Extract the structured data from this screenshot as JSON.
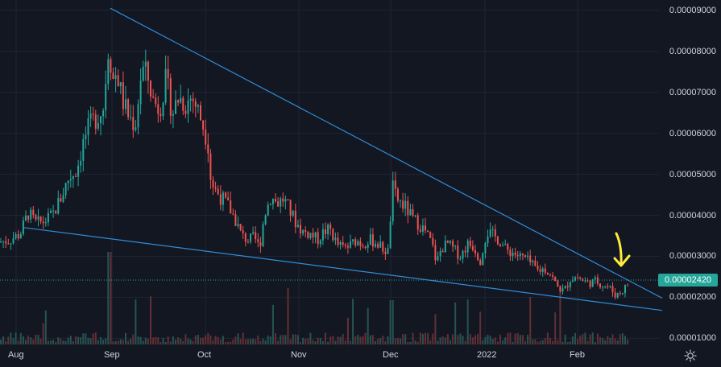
{
  "chart_data": {
    "type": "candlestick",
    "price_axis": {
      "ticks": [
        "0.00009000",
        "0.00008000",
        "0.00007000",
        "0.00006000",
        "0.00005000",
        "0.00004000",
        "0.00003000",
        "0.00002000",
        "0.00001000"
      ],
      "ylim": [
        8.5e-06,
        9.25e-05
      ],
      "grid": true
    },
    "time_axis": {
      "ticks": [
        "Aug",
        "Sep",
        "Oct",
        "Nov",
        "Dec",
        "2022",
        "Feb"
      ],
      "grid": true
    },
    "last_price": "0.00002420",
    "colors": {
      "up": "#26a69a",
      "down": "#ef5350",
      "trendline": "#2f8cd8",
      "annotation_arrow": "#ffeb3b",
      "background": "#131722",
      "grid": "#1f2433",
      "axis_text": "#d1d4dc",
      "volume_up": "#2a5b58",
      "volume_down": "#6a3338"
    },
    "trendlines": [
      {
        "name": "upper",
        "points": [
          [
            "Sep 1",
            9.05e-05
          ],
          [
            "Mar 1",
            1.98e-05
          ]
        ]
      },
      {
        "name": "lower",
        "points": [
          [
            "Jul 26",
            3.7e-05
          ],
          [
            "Mar 1",
            1.68e-05
          ]
        ]
      }
    ],
    "price_path": [
      [
        0,
        3.35e-05
      ],
      [
        12,
        3.4e-05
      ],
      [
        25,
        3.55e-05
      ],
      [
        35,
        4.05e-05
      ],
      [
        45,
        3.8e-05
      ],
      [
        55,
        3.85e-05
      ],
      [
        65,
        4e-05
      ],
      [
        75,
        4.4e-05
      ],
      [
        85,
        4.9e-05
      ],
      [
        95,
        5.1e-05
      ],
      [
        105,
        5.9e-05
      ],
      [
        112,
        6.2e-05
      ],
      [
        120,
        6.4e-05
      ],
      [
        128,
        6.6e-05
      ],
      [
        135,
        8.2e-05
      ],
      [
        140,
        7.3e-05
      ],
      [
        145,
        7.5e-05
      ],
      [
        152,
        6.8e-05
      ],
      [
        160,
        6.4e-05
      ],
      [
        168,
        6.2e-05
      ],
      [
        176,
        7.6e-05
      ],
      [
        183,
        7.4e-05
      ],
      [
        190,
        6.8e-05
      ],
      [
        198,
        6.6e-05
      ],
      [
        206,
        7.3e-05
      ],
      [
        214,
        6.5e-05
      ],
      [
        222,
        6.9e-05
      ],
      [
        230,
        6.7e-05
      ],
      [
        238,
        6.9e-05
      ],
      [
        245,
        6.6e-05
      ],
      [
        252,
        6.2e-05
      ],
      [
        258,
        5.8e-05
      ],
      [
        262,
        4.8e-05
      ],
      [
        268,
        4.6e-05
      ],
      [
        276,
        4.4e-05
      ],
      [
        284,
        4.2e-05
      ],
      [
        292,
        3.9e-05
      ],
      [
        300,
        3.5e-05
      ],
      [
        308,
        3.4e-05
      ],
      [
        316,
        3.45e-05
      ],
      [
        322,
        3.2e-05
      ],
      [
        328,
        4e-05
      ],
      [
        336,
        4.45e-05
      ],
      [
        344,
        4.3e-05
      ],
      [
        352,
        4.4e-05
      ],
      [
        360,
        4.1e-05
      ],
      [
        368,
        3.8e-05
      ],
      [
        376,
        3.6e-05
      ],
      [
        385,
        3.55e-05
      ],
      [
        394,
        3.4e-05
      ],
      [
        402,
        3.6e-05
      ],
      [
        410,
        3.65e-05
      ],
      [
        418,
        3.3e-05
      ],
      [
        426,
        3.2e-05
      ],
      [
        434,
        3.25e-05
      ],
      [
        442,
        3.4e-05
      ],
      [
        450,
        3.3e-05
      ],
      [
        458,
        3.4e-05
      ],
      [
        466,
        3.35e-05
      ],
      [
        474,
        3.2e-05
      ],
      [
        482,
        3.1e-05
      ],
      [
        487,
        4.7e-05
      ],
      [
        492,
        4.4e-05
      ],
      [
        498,
        4.3e-05
      ],
      [
        505,
        4.15e-05
      ],
      [
        512,
        3.9e-05
      ],
      [
        520,
        3.8e-05
      ],
      [
        528,
        3.6e-05
      ],
      [
        536,
        3.3e-05
      ],
      [
        542,
        2.85e-05
      ],
      [
        548,
        3.2e-05
      ],
      [
        556,
        3.3e-05
      ],
      [
        564,
        3.15e-05
      ],
      [
        572,
        3e-05
      ],
      [
        580,
        3.3e-05
      ],
      [
        588,
        3.25e-05
      ],
      [
        596,
        2.9e-05
      ],
      [
        604,
        3.6e-05
      ],
      [
        612,
        3.5e-05
      ],
      [
        620,
        3.4e-05
      ],
      [
        628,
        3.15e-05
      ],
      [
        636,
        3.1e-05
      ],
      [
        644,
        3e-05
      ],
      [
        652,
        2.95e-05
      ],
      [
        660,
        2.8e-05
      ],
      [
        668,
        2.65e-05
      ],
      [
        676,
        2.7e-05
      ],
      [
        684,
        2.55e-05
      ],
      [
        692,
        2.25e-05
      ],
      [
        700,
        2.15e-05
      ],
      [
        708,
        2.45e-05
      ],
      [
        716,
        2.5e-05
      ],
      [
        724,
        2.4e-05
      ],
      [
        732,
        2.35e-05
      ],
      [
        740,
        2.4e-05
      ],
      [
        748,
        2.3e-05
      ],
      [
        756,
        2.25e-05
      ],
      [
        764,
        2.05e-05
      ],
      [
        772,
        2.15e-05
      ],
      [
        778,
        2.28e-05
      ],
      [
        782,
        2.42e-05
      ]
    ]
  }
}
